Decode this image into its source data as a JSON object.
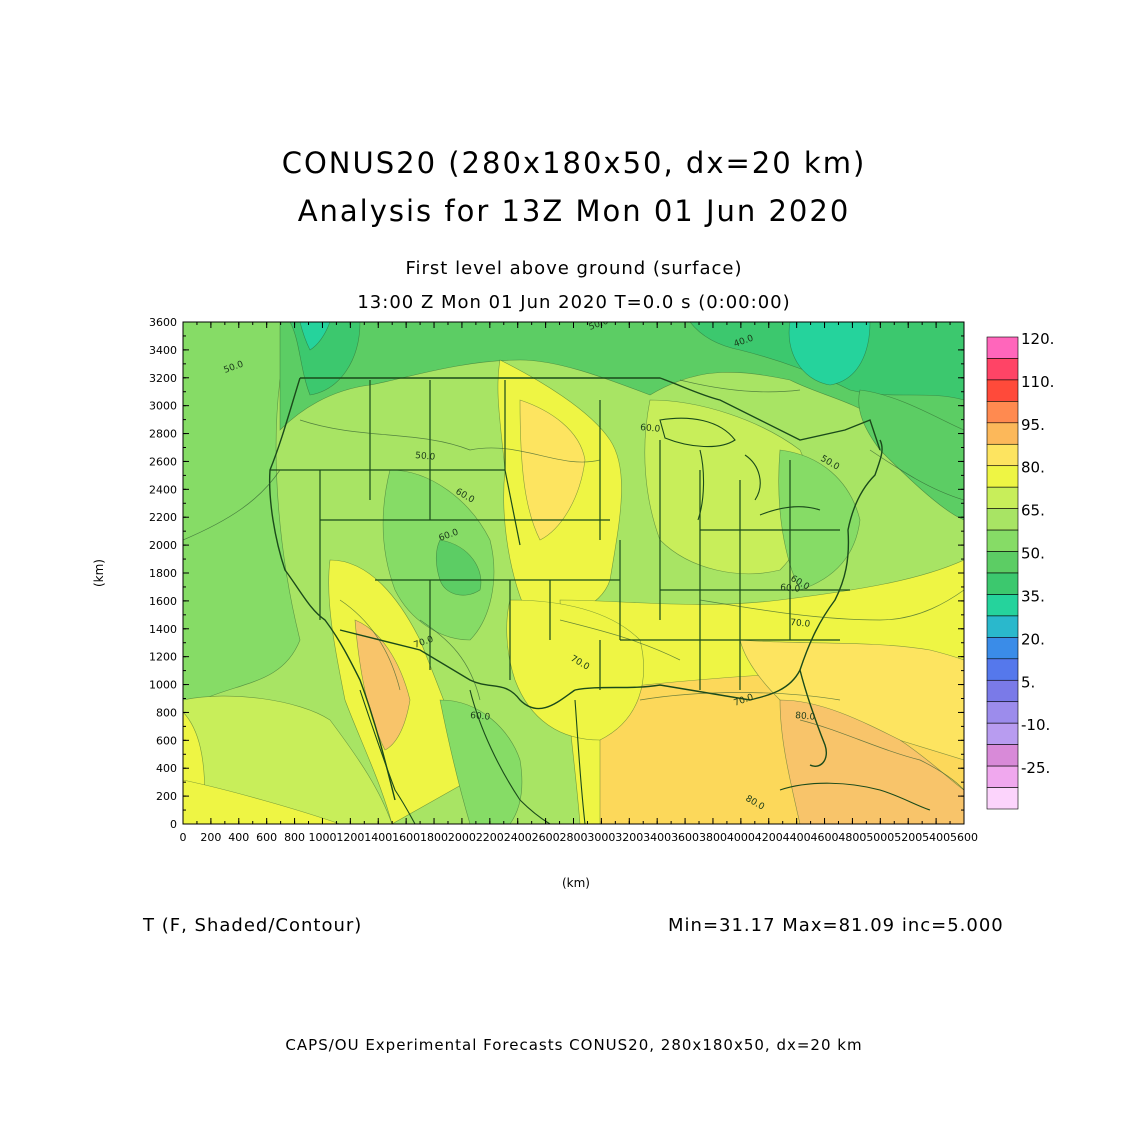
{
  "header": {
    "title_line1": "CONUS20 (280x180x50, dx=20 km)",
    "title_line2": "Analysis for 13Z Mon 01 Jun 2020",
    "subtitle_line1": "First level above ground (surface)",
    "subtitle_line2": "13:00 Z Mon 01 Jun 2020    T=0.0 s (0:00:00)"
  },
  "axes": {
    "x_label": "(km)",
    "y_label": "(km)",
    "x_range": [
      0,
      5600
    ],
    "y_range": [
      0,
      3600
    ],
    "x_ticks": [
      "0",
      "200",
      "400",
      "600",
      "800",
      "1000",
      "1200",
      "1400",
      "1600",
      "1800",
      "2000",
      "2200",
      "2400",
      "2600",
      "2800",
      "3000",
      "3200",
      "3400",
      "3600",
      "3800",
      "4000",
      "4200",
      "4400",
      "4600",
      "4800",
      "5000",
      "5200",
      "5400",
      "5600"
    ],
    "y_ticks": [
      "0",
      "200",
      "400",
      "600",
      "800",
      "1000",
      "1200",
      "1400",
      "1600",
      "1800",
      "2000",
      "2200",
      "2400",
      "2600",
      "2800",
      "3000",
      "3200",
      "3400",
      "3600"
    ]
  },
  "colorbar": {
    "labels": [
      "120.",
      "110.",
      "95.",
      "80.",
      "65.",
      "50.",
      "35.",
      "20.",
      "5.",
      "-10.",
      "-25."
    ],
    "colors": [
      "#ff66bb",
      "#ff4466",
      "#ff4a3a",
      "#ff8a50",
      "#fcb85a",
      "#fde460",
      "#eef544",
      "#c8ee5a",
      "#a8e464",
      "#86dc66",
      "#5ccd64",
      "#3cc86e",
      "#25d39c",
      "#2ab8cc",
      "#3a8ce8",
      "#5578ec",
      "#7a7ae8",
      "#9c8cec",
      "#b89cf0",
      "#d88ad8",
      "#f0a8ee",
      "#fcd4fc"
    ]
  },
  "map": {
    "contour_labels": [
      "50.0",
      "50.0",
      "60.0",
      "60.0",
      "60.0",
      "50.0",
      "40.0",
      "60.0",
      "70.0",
      "70.0",
      "70.0",
      "60.0",
      "70.0",
      "80.0",
      "80.0",
      "50.0",
      "60.0"
    ],
    "palette": {
      "cool": "#25d39c",
      "cool2": "#3cc86e",
      "mid": "#5ccd64",
      "mid2": "#86dc66",
      "mild": "#a8e464",
      "mild2": "#c8ee5a",
      "warm": "#eef544",
      "warm2": "#fde460",
      "hot": "#fcd85a",
      "hot2": "#f8c46a",
      "lines": "#1a4a1a"
    }
  },
  "footer": {
    "variable": "T (F, Shaded/Contour)",
    "stats": "Min=31.17 Max=81.09 inc=5.000",
    "credit": "CAPS/OU Experimental Forecasts  CONUS20, 280x180x50, dx=20 km"
  }
}
